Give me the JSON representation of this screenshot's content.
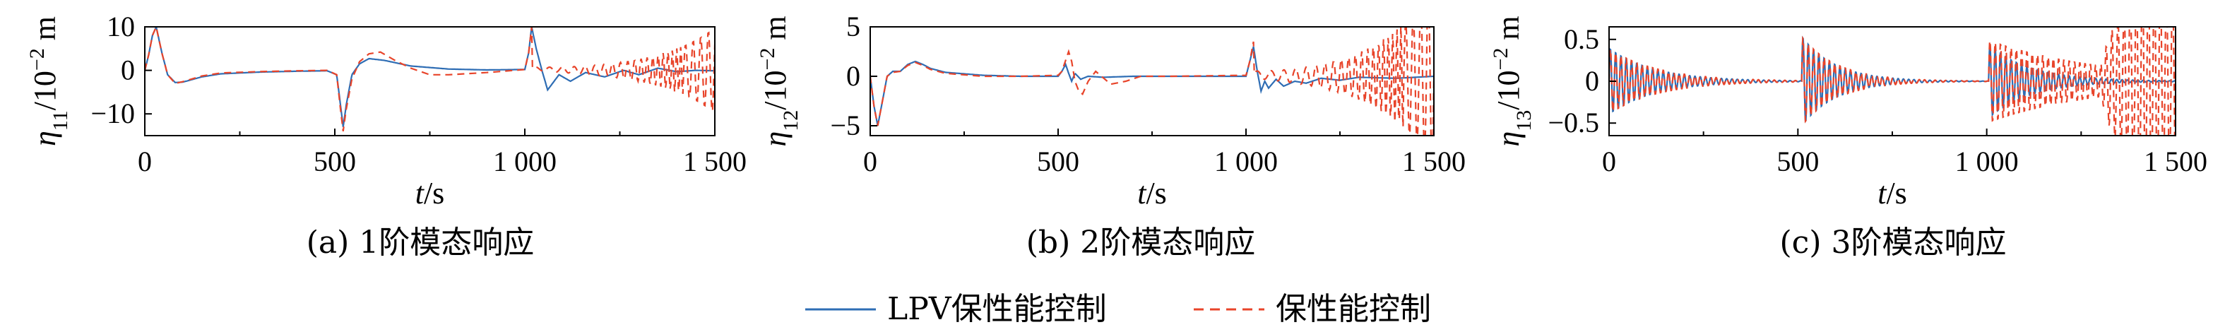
{
  "legend": {
    "entries": [
      {
        "label": "LPV保性能控制",
        "color": "#2e6db4",
        "dash": "solid"
      },
      {
        "label": "保性能控制",
        "color": "#e8442a",
        "dash": "dashed"
      }
    ]
  },
  "chart_data": [
    {
      "type": "line",
      "caption": "(a) 1阶模态响应",
      "xlabel": "t/s",
      "ylabel": "η11/10⁻² m",
      "ylabel_parts": {
        "symbol": "η",
        "sub": "11",
        "mid": "/10",
        "sup": "−2",
        "unit": " m"
      },
      "xlim": [
        0,
        1500
      ],
      "ylim": [
        -15,
        10
      ],
      "xticks": [
        0,
        500,
        1000,
        1500
      ],
      "xtick_labels": [
        "0",
        "500",
        "1 000",
        "1 500"
      ],
      "yticks": [
        -10,
        0,
        10
      ],
      "ytick_labels": [
        "−10",
        "0",
        "10"
      ],
      "grid": false,
      "series": [
        {
          "name": "LPV保性能控制",
          "points": [
            [
              0,
              0
            ],
            [
              10,
              3.5
            ],
            [
              20,
              8
            ],
            [
              30,
              10
            ],
            [
              45,
              4
            ],
            [
              60,
              -1
            ],
            [
              80,
              -2.8
            ],
            [
              100,
              -2.7
            ],
            [
              150,
              -1.5
            ],
            [
              200,
              -0.8
            ],
            [
              300,
              -0.4
            ],
            [
              400,
              -0.2
            ],
            [
              480,
              -0.1
            ],
            [
              505,
              -1
            ],
            [
              515,
              -8
            ],
            [
              522,
              -13
            ],
            [
              530,
              -8
            ],
            [
              545,
              -1
            ],
            [
              565,
              1.5
            ],
            [
              590,
              2.7
            ],
            [
              630,
              2.3
            ],
            [
              700,
              1
            ],
            [
              800,
              0.3
            ],
            [
              900,
              0.1
            ],
            [
              1000,
              0.2
            ],
            [
              1010,
              4
            ],
            [
              1018,
              10
            ],
            [
              1030,
              5
            ],
            [
              1045,
              0
            ],
            [
              1060,
              -4.5
            ],
            [
              1090,
              -1
            ],
            [
              1120,
              -2.5
            ],
            [
              1160,
              -0.5
            ],
            [
              1210,
              -1.5
            ],
            [
              1260,
              0
            ],
            [
              1300,
              -1
            ],
            [
              1350,
              0.5
            ],
            [
              1400,
              -0.3
            ],
            [
              1450,
              0
            ],
            [
              1500,
              -0.1
            ]
          ]
        },
        {
          "name": "保性能控制",
          "amp_spec": {
            "base_amp": 0.3,
            "growth": 0.22,
            "offset": 0.5
          },
          "points": [
            [
              0,
              0
            ],
            [
              10,
              3.5
            ],
            [
              20,
              8
            ],
            [
              30,
              10
            ],
            [
              45,
              4
            ],
            [
              60,
              -1
            ],
            [
              80,
              -3
            ],
            [
              100,
              -2.6
            ],
            [
              150,
              -1.3
            ],
            [
              200,
              -0.6
            ],
            [
              300,
              -0.3
            ],
            [
              400,
              -0.1
            ],
            [
              480,
              0
            ],
            [
              505,
              -1
            ],
            [
              515,
              -9
            ],
            [
              522,
              -14
            ],
            [
              530,
              -9
            ],
            [
              545,
              -2
            ],
            [
              565,
              2
            ],
            [
              590,
              3.8
            ],
            [
              620,
              4.2
            ],
            [
              660,
              2.2
            ],
            [
              700,
              0.5
            ],
            [
              750,
              -1
            ],
            [
              800,
              -1
            ],
            [
              900,
              -0.5
            ],
            [
              1000,
              0.2
            ],
            [
              1010,
              4
            ],
            [
              1018,
              10
            ]
          ]
        }
      ]
    },
    {
      "type": "line",
      "caption": "(b) 2阶模态响应",
      "xlabel": "t/s",
      "ylabel": "η12/10⁻² m",
      "ylabel_parts": {
        "symbol": "η",
        "sub": "12",
        "mid": "/10",
        "sup": "−2",
        "unit": " m"
      },
      "xlim": [
        0,
        1500
      ],
      "ylim": [
        -6,
        5
      ],
      "xticks": [
        0,
        500,
        1000,
        1500
      ],
      "xtick_labels": [
        "0",
        "500",
        "1 000",
        "1 500"
      ],
      "yticks": [
        -5,
        0,
        5
      ],
      "ytick_labels": [
        "−5",
        "0",
        "5"
      ],
      "grid": false,
      "series": [
        {
          "name": "LPV保性能控制",
          "points": [
            [
              0,
              0
            ],
            [
              10,
              -3
            ],
            [
              20,
              -5
            ],
            [
              30,
              -3
            ],
            [
              45,
              0
            ],
            [
              60,
              0.5
            ],
            [
              80,
              0.5
            ],
            [
              100,
              1.2
            ],
            [
              120,
              1.5
            ],
            [
              140,
              1.2
            ],
            [
              160,
              0.8
            ],
            [
              200,
              0.4
            ],
            [
              300,
              0.1
            ],
            [
              400,
              0
            ],
            [
              500,
              0
            ],
            [
              510,
              0.5
            ],
            [
              520,
              1.2
            ],
            [
              528,
              0.3
            ],
            [
              536,
              -0.5
            ],
            [
              545,
              0.3
            ],
            [
              560,
              -0.3
            ],
            [
              580,
              0
            ],
            [
              620,
              -0.1
            ],
            [
              700,
              0
            ],
            [
              1000,
              0
            ],
            [
              1010,
              1.5
            ],
            [
              1020,
              3
            ],
            [
              1030,
              0.5
            ],
            [
              1040,
              -1.5
            ],
            [
              1050,
              -0.5
            ],
            [
              1060,
              -1.2
            ],
            [
              1080,
              -0.3
            ],
            [
              1100,
              -1
            ],
            [
              1130,
              -0.5
            ],
            [
              1160,
              -0.7
            ],
            [
              1200,
              -0.2
            ],
            [
              1250,
              -0.4
            ],
            [
              1300,
              -0.1
            ],
            [
              1400,
              -0.2
            ],
            [
              1500,
              0
            ]
          ]
        },
        {
          "name": "保性能控制",
          "amp_spec": {
            "base_amp": 0.3,
            "growth": 0.15,
            "offset": 0.2
          },
          "points": [
            [
              0,
              0
            ],
            [
              10,
              -3
            ],
            [
              20,
              -5
            ],
            [
              30,
              -3
            ],
            [
              45,
              0
            ],
            [
              60,
              0.4
            ],
            [
              80,
              0.5
            ],
            [
              100,
              1.1
            ],
            [
              120,
              1.4
            ],
            [
              140,
              1.1
            ],
            [
              160,
              0.7
            ],
            [
              200,
              0.3
            ],
            [
              300,
              0
            ],
            [
              400,
              0
            ],
            [
              500,
              0.1
            ],
            [
              510,
              0.5
            ],
            [
              520,
              1.6
            ],
            [
              528,
              2.5
            ],
            [
              536,
              1.5
            ],
            [
              545,
              -0.5
            ],
            [
              555,
              -1.5
            ],
            [
              565,
              -1.8
            ],
            [
              580,
              -0.5
            ],
            [
              600,
              0.5
            ],
            [
              640,
              -0.8
            ],
            [
              680,
              -0.5
            ],
            [
              720,
              0
            ],
            [
              800,
              0
            ],
            [
              1000,
              0.1
            ],
            [
              1010,
              1.5
            ],
            [
              1020,
              3.5
            ]
          ]
        }
      ]
    },
    {
      "type": "line",
      "caption": "(c) 3阶模态响应",
      "xlabel": "t/s",
      "ylabel": "η13/10⁻² m",
      "ylabel_parts": {
        "symbol": "η",
        "sub": "13",
        "mid": "/10",
        "sup": "−2",
        "unit": " m"
      },
      "xlim": [
        0,
        1500
      ],
      "ylim": [
        -0.65,
        0.65
      ],
      "xticks": [
        0,
        500,
        1000,
        1500
      ],
      "xtick_labels": [
        "0",
        "500",
        "1 000",
        "1 500"
      ],
      "yticks": [
        -0.5,
        0,
        0.5
      ],
      "ytick_labels": [
        "−0.5",
        "0",
        "0.5"
      ],
      "grid": false,
      "series": [
        {
          "name": "LPV保性能控制",
          "decay_spec": {
            "amp": 0.4,
            "t0": 0,
            "tau": 120,
            "period": 14,
            "bursts": [
              [
                510,
                0.55,
                90
              ],
              [
                1005,
                0.45,
                110
              ]
            ]
          }
        },
        {
          "name": "保性能控制",
          "decay_spec": {
            "amp": 0.4,
            "t0": 0,
            "tau": 130,
            "period": 14,
            "bursts": [
              [
                510,
                0.55,
                95
              ],
              [
                1005,
                0.5,
                300
              ]
            ],
            "diverge_from": 1300
          }
        }
      ]
    }
  ]
}
